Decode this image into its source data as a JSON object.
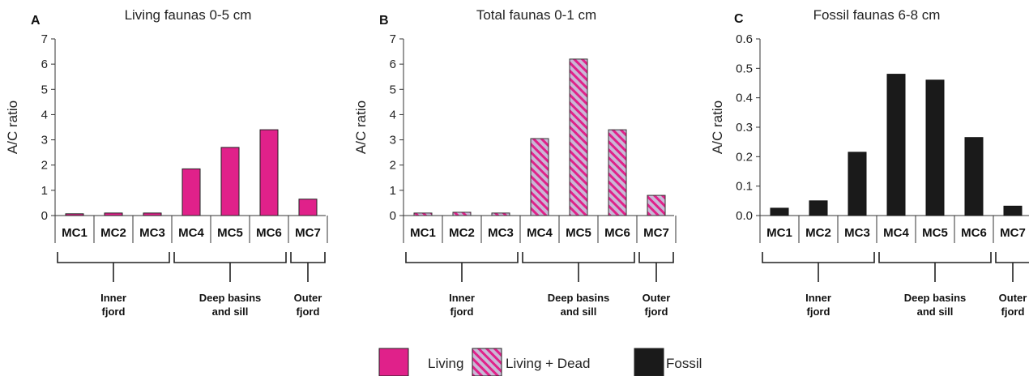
{
  "chart_data": [
    {
      "type": "bar",
      "panel_label": "A",
      "title": "Living faunas 0-5 cm",
      "ylabel": "A/C ratio",
      "ylim": [
        0,
        7
      ],
      "yticks": [
        "0",
        "1",
        "2",
        "3",
        "4",
        "5",
        "6",
        "7"
      ],
      "categories": [
        "MC1",
        "MC2",
        "MC3",
        "MC4",
        "MC5",
        "MC6",
        "MC7"
      ],
      "series": [
        {
          "name": "Living",
          "values": [
            0.07,
            0.1,
            0.1,
            1.85,
            2.7,
            3.4,
            0.65
          ]
        }
      ],
      "groups": [
        {
          "lines": [
            "Inner",
            "fjord"
          ]
        },
        {
          "lines": [
            "Deep basins",
            "and sill"
          ]
        },
        {
          "lines": [
            "Outer",
            "fjord"
          ]
        }
      ]
    },
    {
      "type": "bar",
      "panel_label": "B",
      "title": "Total faunas 0-1 cm",
      "ylabel": "A/C ratio",
      "ylim": [
        0,
        7
      ],
      "yticks": [
        "0",
        "1",
        "2",
        "3",
        "4",
        "5",
        "6",
        "7"
      ],
      "categories": [
        "MC1",
        "MC2",
        "MC3",
        "MC4",
        "MC5",
        "MC6",
        "MC7"
      ],
      "series": [
        {
          "name": "Living + Dead",
          "values": [
            0.1,
            0.13,
            0.1,
            3.05,
            6.2,
            3.4,
            0.8
          ]
        }
      ],
      "groups": [
        {
          "lines": [
            "Inner",
            "fjord"
          ]
        },
        {
          "lines": [
            "Deep basins",
            "and sill"
          ]
        },
        {
          "lines": [
            "Outer",
            "fjord"
          ]
        }
      ]
    },
    {
      "type": "bar",
      "panel_label": "C",
      "title": "Fossil faunas 6-8 cm",
      "ylabel": "A/C ratio",
      "ylim": [
        0,
        0.6
      ],
      "yticks": [
        "0.0",
        "0.1",
        "0.2",
        "0.3",
        "0.4",
        "0.5",
        "0.6"
      ],
      "categories": [
        "MC1",
        "MC2",
        "MC3",
        "MC4",
        "MC5",
        "MC6",
        "MC7"
      ],
      "series": [
        {
          "name": "Fossil",
          "values": [
            0.025,
            0.05,
            0.215,
            0.48,
            0.46,
            0.265,
            0.032
          ]
        }
      ],
      "groups": [
        {
          "lines": [
            "Inner",
            "fjord"
          ]
        },
        {
          "lines": [
            "Deep basins",
            "and sill"
          ]
        },
        {
          "lines": [
            "Outer",
            "fjord"
          ]
        }
      ]
    }
  ],
  "legend": [
    {
      "label": "Living",
      "style": "solid",
      "color": "#e0218a"
    },
    {
      "label": "Living + Dead",
      "style": "hatch",
      "color": "#e0218a"
    },
    {
      "label": "Fossil",
      "style": "solid",
      "color": "#1a1a1a"
    }
  ]
}
